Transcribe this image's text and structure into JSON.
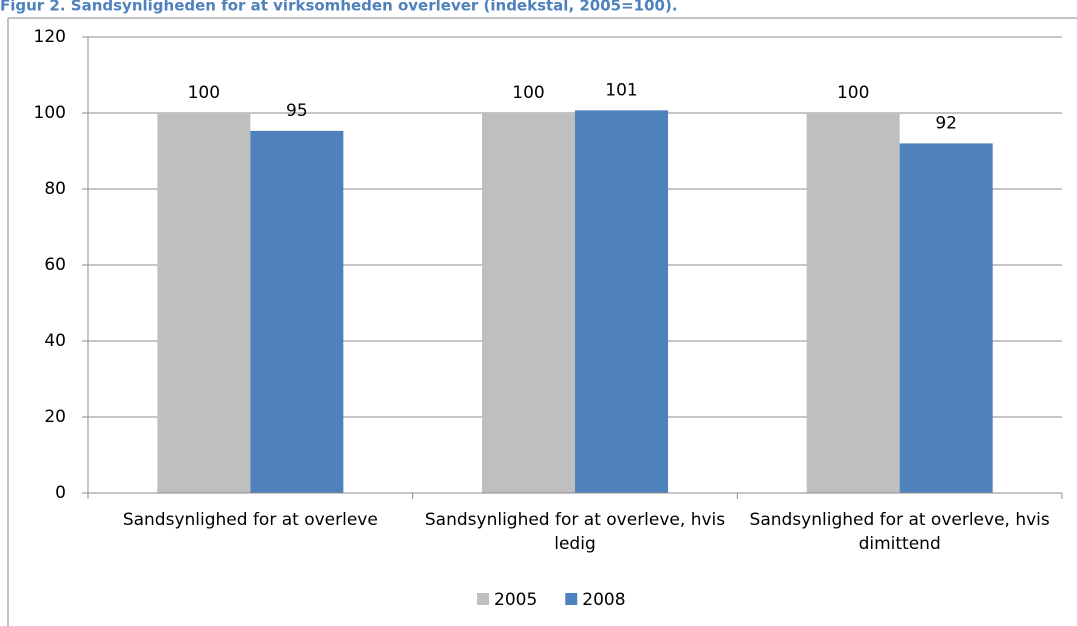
{
  "chart_data": {
    "type": "bar",
    "title": "Figur 2. Sandsynligheden for at virksomheden overlever (indekstal, 2005=100).",
    "categories": [
      "Sandsynlighed for at overleve",
      "Sandsynlighed for at overleve, hvis ledig",
      "Sandsynlighed for at overleve, hvis dimittend"
    ],
    "series": [
      {
        "name": "2005",
        "color": "#bfbfbf",
        "values": [
          100,
          100,
          100
        ]
      },
      {
        "name": "2008",
        "color": "#4f81bd",
        "values": [
          95.3,
          100.7,
          92
        ],
        "value_labels": [
          "95",
          "101",
          "92"
        ]
      }
    ],
    "ylim": [
      0,
      120
    ],
    "yticks": [
      0,
      20,
      40,
      60,
      80,
      100,
      120
    ],
    "grid": true,
    "legend": "bottom"
  }
}
